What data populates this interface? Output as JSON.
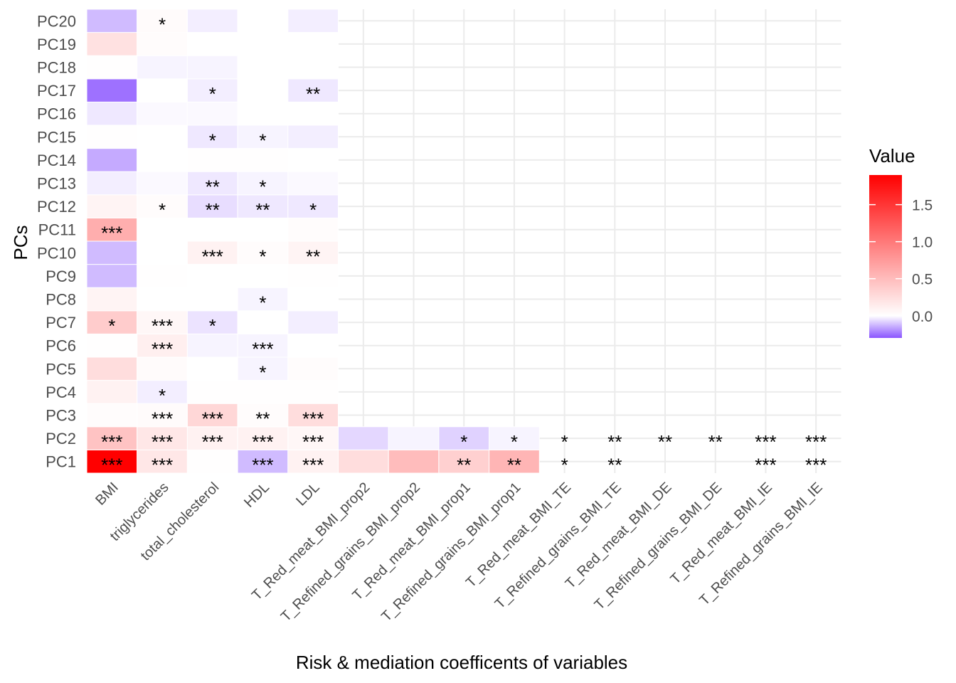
{
  "chart_data": {
    "type": "heatmap",
    "xlabel": "Risk & mediation coefficents of variables",
    "ylabel": "PCs",
    "x_categories": [
      "BMI",
      "triglycerides",
      "total_cholesterol",
      "HDL",
      "LDL",
      "T_Red_meat_BMI_prop2",
      "T_Refined_grains_BMI_prop2",
      "T_Red_meat_BMI_prop1",
      "T_Refined_grains_BMI_prop1",
      "T_Red_meat_BMI_TE",
      "T_Refined_grains_BMI_TE",
      "T_Red_meat_BMI_DE",
      "T_Refined_grains_BMI_DE",
      "T_Red_meat_BMI_IE",
      "T_Refined_grains_BMI_IE"
    ],
    "y_categories": [
      "PC1",
      "PC2",
      "PC3",
      "PC4",
      "PC5",
      "PC6",
      "PC7",
      "PC8",
      "PC9",
      "PC10",
      "PC11",
      "PC12",
      "PC13",
      "PC14",
      "PC15",
      "PC16",
      "PC17",
      "PC18",
      "PC19",
      "PC20"
    ],
    "value_range": [
      -0.3,
      1.9
    ],
    "legend": {
      "title": "Value",
      "position": "right",
      "ticks": [
        0.0,
        0.5,
        1.0,
        1.5
      ],
      "tick_labels": [
        "0.0",
        "0.5",
        "1.0",
        "1.5"
      ],
      "colors": {
        "low": "#8a55ff",
        "mid": "#ffffff",
        "high": "#ff0000"
      }
    },
    "grid": true,
    "cells": [
      {
        "x": "BMI",
        "y": "PC1",
        "value": 1.9,
        "sig": "***"
      },
      {
        "x": "BMI",
        "y": "PC2",
        "value": 0.45,
        "sig": "***"
      },
      {
        "x": "BMI",
        "y": "PC3",
        "value": 0.02,
        "sig": ""
      },
      {
        "x": "BMI",
        "y": "PC4",
        "value": 0.1,
        "sig": ""
      },
      {
        "x": "BMI",
        "y": "PC5",
        "value": 0.25,
        "sig": ""
      },
      {
        "x": "BMI",
        "y": "PC6",
        "value": 0.01,
        "sig": ""
      },
      {
        "x": "BMI",
        "y": "PC7",
        "value": 0.38,
        "sig": "*"
      },
      {
        "x": "BMI",
        "y": "PC8",
        "value": 0.08,
        "sig": ""
      },
      {
        "x": "BMI",
        "y": "PC9",
        "value": -0.12,
        "sig": ""
      },
      {
        "x": "BMI",
        "y": "PC10",
        "value": -0.12,
        "sig": ""
      },
      {
        "x": "BMI",
        "y": "PC11",
        "value": 0.6,
        "sig": "***"
      },
      {
        "x": "BMI",
        "y": "PC12",
        "value": 0.08,
        "sig": ""
      },
      {
        "x": "BMI",
        "y": "PC13",
        "value": -0.03,
        "sig": ""
      },
      {
        "x": "BMI",
        "y": "PC14",
        "value": -0.15,
        "sig": ""
      },
      {
        "x": "BMI",
        "y": "PC15",
        "value": 0.01,
        "sig": ""
      },
      {
        "x": "BMI",
        "y": "PC16",
        "value": -0.04,
        "sig": ""
      },
      {
        "x": "BMI",
        "y": "PC17",
        "value": -0.25,
        "sig": ""
      },
      {
        "x": "BMI",
        "y": "PC18",
        "value": 0.01,
        "sig": ""
      },
      {
        "x": "BMI",
        "y": "PC19",
        "value": 0.22,
        "sig": ""
      },
      {
        "x": "BMI",
        "y": "PC20",
        "value": -0.12,
        "sig": ""
      },
      {
        "x": "triglycerides",
        "y": "PC1",
        "value": 0.18,
        "sig": "***"
      },
      {
        "x": "triglycerides",
        "y": "PC2",
        "value": 0.18,
        "sig": "***"
      },
      {
        "x": "triglycerides",
        "y": "PC3",
        "value": 0.03,
        "sig": "***"
      },
      {
        "x": "triglycerides",
        "y": "PC4",
        "value": -0.03,
        "sig": "*"
      },
      {
        "x": "triglycerides",
        "y": "PC5",
        "value": 0.03,
        "sig": ""
      },
      {
        "x": "triglycerides",
        "y": "PC6",
        "value": 0.12,
        "sig": "***"
      },
      {
        "x": "triglycerides",
        "y": "PC7",
        "value": 0.06,
        "sig": "***"
      },
      {
        "x": "triglycerides",
        "y": "PC8",
        "value": 0.0,
        "sig": ""
      },
      {
        "x": "triglycerides",
        "y": "PC9",
        "value": 0.01,
        "sig": ""
      },
      {
        "x": "triglycerides",
        "y": "PC10",
        "value": 0.0,
        "sig": ""
      },
      {
        "x": "triglycerides",
        "y": "PC11",
        "value": 0.0,
        "sig": ""
      },
      {
        "x": "triglycerides",
        "y": "PC12",
        "value": 0.02,
        "sig": "*"
      },
      {
        "x": "triglycerides",
        "y": "PC13",
        "value": -0.01,
        "sig": ""
      },
      {
        "x": "triglycerides",
        "y": "PC14",
        "value": 0.0,
        "sig": ""
      },
      {
        "x": "triglycerides",
        "y": "PC15",
        "value": 0.0,
        "sig": ""
      },
      {
        "x": "triglycerides",
        "y": "PC16",
        "value": -0.01,
        "sig": ""
      },
      {
        "x": "triglycerides",
        "y": "PC17",
        "value": 0.0,
        "sig": ""
      },
      {
        "x": "triglycerides",
        "y": "PC18",
        "value": -0.02,
        "sig": ""
      },
      {
        "x": "triglycerides",
        "y": "PC19",
        "value": 0.02,
        "sig": ""
      },
      {
        "x": "triglycerides",
        "y": "PC20",
        "value": 0.03,
        "sig": "*"
      },
      {
        "x": "total_cholesterol",
        "y": "PC1",
        "value": 0.01,
        "sig": ""
      },
      {
        "x": "total_cholesterol",
        "y": "PC2",
        "value": 0.1,
        "sig": "***"
      },
      {
        "x": "total_cholesterol",
        "y": "PC3",
        "value": 0.3,
        "sig": "***"
      },
      {
        "x": "total_cholesterol",
        "y": "PC4",
        "value": 0.01,
        "sig": ""
      },
      {
        "x": "total_cholesterol",
        "y": "PC5",
        "value": 0.0,
        "sig": ""
      },
      {
        "x": "total_cholesterol",
        "y": "PC6",
        "value": -0.02,
        "sig": ""
      },
      {
        "x": "total_cholesterol",
        "y": "PC7",
        "value": -0.05,
        "sig": "*"
      },
      {
        "x": "total_cholesterol",
        "y": "PC8",
        "value": 0.0,
        "sig": ""
      },
      {
        "x": "total_cholesterol",
        "y": "PC9",
        "value": 0.0,
        "sig": ""
      },
      {
        "x": "total_cholesterol",
        "y": "PC10",
        "value": 0.1,
        "sig": "***"
      },
      {
        "x": "total_cholesterol",
        "y": "PC11",
        "value": 0.0,
        "sig": ""
      },
      {
        "x": "total_cholesterol",
        "y": "PC12",
        "value": -0.06,
        "sig": "**"
      },
      {
        "x": "total_cholesterol",
        "y": "PC13",
        "value": -0.04,
        "sig": "**"
      },
      {
        "x": "total_cholesterol",
        "y": "PC14",
        "value": 0.01,
        "sig": ""
      },
      {
        "x": "total_cholesterol",
        "y": "PC15",
        "value": -0.04,
        "sig": "*"
      },
      {
        "x": "total_cholesterol",
        "y": "PC16",
        "value": -0.01,
        "sig": ""
      },
      {
        "x": "total_cholesterol",
        "y": "PC17",
        "value": -0.03,
        "sig": "*"
      },
      {
        "x": "total_cholesterol",
        "y": "PC18",
        "value": -0.02,
        "sig": ""
      },
      {
        "x": "total_cholesterol",
        "y": "PC19",
        "value": 0.0,
        "sig": ""
      },
      {
        "x": "total_cholesterol",
        "y": "PC20",
        "value": -0.03,
        "sig": ""
      },
      {
        "x": "HDL",
        "y": "PC1",
        "value": -0.12,
        "sig": "***"
      },
      {
        "x": "HDL",
        "y": "PC2",
        "value": 0.1,
        "sig": "***"
      },
      {
        "x": "HDL",
        "y": "PC3",
        "value": 0.02,
        "sig": "**"
      },
      {
        "x": "HDL",
        "y": "PC4",
        "value": 0.01,
        "sig": ""
      },
      {
        "x": "HDL",
        "y": "PC5",
        "value": -0.02,
        "sig": "*"
      },
      {
        "x": "HDL",
        "y": "PC6",
        "value": -0.02,
        "sig": "***"
      },
      {
        "x": "HDL",
        "y": "PC7",
        "value": 0.0,
        "sig": ""
      },
      {
        "x": "HDL",
        "y": "PC8",
        "value": -0.02,
        "sig": "*"
      },
      {
        "x": "HDL",
        "y": "PC9",
        "value": 0.0,
        "sig": ""
      },
      {
        "x": "HDL",
        "y": "PC10",
        "value": 0.02,
        "sig": "*"
      },
      {
        "x": "HDL",
        "y": "PC11",
        "value": 0.0,
        "sig": ""
      },
      {
        "x": "HDL",
        "y": "PC12",
        "value": -0.04,
        "sig": "**"
      },
      {
        "x": "HDL",
        "y": "PC13",
        "value": -0.02,
        "sig": "*"
      },
      {
        "x": "HDL",
        "y": "PC14",
        "value": 0.01,
        "sig": ""
      },
      {
        "x": "HDL",
        "y": "PC15",
        "value": -0.02,
        "sig": "*"
      },
      {
        "x": "HDL",
        "y": "PC16",
        "value": 0.0,
        "sig": ""
      },
      {
        "x": "HDL",
        "y": "PC17",
        "value": 0.0,
        "sig": ""
      },
      {
        "x": "HDL",
        "y": "PC18",
        "value": 0.0,
        "sig": ""
      },
      {
        "x": "HDL",
        "y": "PC19",
        "value": 0.0,
        "sig": ""
      },
      {
        "x": "HDL",
        "y": "PC20",
        "value": 0.0,
        "sig": ""
      },
      {
        "x": "LDL",
        "y": "PC1",
        "value": 0.1,
        "sig": "***"
      },
      {
        "x": "LDL",
        "y": "PC2",
        "value": 0.06,
        "sig": "***"
      },
      {
        "x": "LDL",
        "y": "PC3",
        "value": 0.25,
        "sig": "***"
      },
      {
        "x": "LDL",
        "y": "PC4",
        "value": 0.01,
        "sig": ""
      },
      {
        "x": "LDL",
        "y": "PC5",
        "value": 0.02,
        "sig": ""
      },
      {
        "x": "LDL",
        "y": "PC6",
        "value": 0.0,
        "sig": ""
      },
      {
        "x": "LDL",
        "y": "PC7",
        "value": -0.03,
        "sig": ""
      },
      {
        "x": "LDL",
        "y": "PC8",
        "value": 0.0,
        "sig": ""
      },
      {
        "x": "LDL",
        "y": "PC9",
        "value": 0.01,
        "sig": ""
      },
      {
        "x": "LDL",
        "y": "PC10",
        "value": 0.08,
        "sig": "**"
      },
      {
        "x": "LDL",
        "y": "PC11",
        "value": 0.02,
        "sig": ""
      },
      {
        "x": "LDL",
        "y": "PC12",
        "value": -0.04,
        "sig": "*"
      },
      {
        "x": "LDL",
        "y": "PC13",
        "value": -0.01,
        "sig": ""
      },
      {
        "x": "LDL",
        "y": "PC14",
        "value": 0.0,
        "sig": ""
      },
      {
        "x": "LDL",
        "y": "PC15",
        "value": -0.03,
        "sig": ""
      },
      {
        "x": "LDL",
        "y": "PC16",
        "value": 0.0,
        "sig": ""
      },
      {
        "x": "LDL",
        "y": "PC17",
        "value": -0.04,
        "sig": "**"
      },
      {
        "x": "LDL",
        "y": "PC18",
        "value": 0.0,
        "sig": ""
      },
      {
        "x": "LDL",
        "y": "PC19",
        "value": 0.0,
        "sig": ""
      },
      {
        "x": "LDL",
        "y": "PC20",
        "value": -0.03,
        "sig": ""
      },
      {
        "x": "T_Red_meat_BMI_prop2",
        "y": "PC1",
        "value": 0.25,
        "sig": ""
      },
      {
        "x": "T_Red_meat_BMI_prop2",
        "y": "PC2",
        "value": -0.07,
        "sig": ""
      },
      {
        "x": "T_Refined_grains_BMI_prop2",
        "y": "PC1",
        "value": 0.5,
        "sig": ""
      },
      {
        "x": "T_Refined_grains_BMI_prop2",
        "y": "PC2",
        "value": -0.02,
        "sig": ""
      },
      {
        "x": "T_Red_meat_BMI_prop1",
        "y": "PC1",
        "value": 0.35,
        "sig": "**"
      },
      {
        "x": "T_Red_meat_BMI_prop1",
        "y": "PC2",
        "value": -0.08,
        "sig": "*"
      },
      {
        "x": "T_Refined_grains_BMI_prop1",
        "y": "PC1",
        "value": 0.55,
        "sig": "**"
      },
      {
        "x": "T_Refined_grains_BMI_prop1",
        "y": "PC2",
        "value": -0.02,
        "sig": "*"
      },
      {
        "x": "T_Red_meat_BMI_TE",
        "y": "PC1",
        "value": 0.0,
        "sig": "*"
      },
      {
        "x": "T_Red_meat_BMI_TE",
        "y": "PC2",
        "value": 0.0,
        "sig": "*"
      },
      {
        "x": "T_Refined_grains_BMI_TE",
        "y": "PC1",
        "value": 0.0,
        "sig": "**"
      },
      {
        "x": "T_Refined_grains_BMI_TE",
        "y": "PC2",
        "value": 0.0,
        "sig": "**"
      },
      {
        "x": "T_Red_meat_BMI_DE",
        "y": "PC1",
        "value": 0.0,
        "sig": ""
      },
      {
        "x": "T_Red_meat_BMI_DE",
        "y": "PC2",
        "value": 0.0,
        "sig": "**"
      },
      {
        "x": "T_Refined_grains_BMI_DE",
        "y": "PC1",
        "value": 0.0,
        "sig": ""
      },
      {
        "x": "T_Refined_grains_BMI_DE",
        "y": "PC2",
        "value": 0.0,
        "sig": "**"
      },
      {
        "x": "T_Red_meat_BMI_IE",
        "y": "PC1",
        "value": 0.0,
        "sig": "***"
      },
      {
        "x": "T_Red_meat_BMI_IE",
        "y": "PC2",
        "value": 0.0,
        "sig": "***"
      },
      {
        "x": "T_Refined_grains_BMI_IE",
        "y": "PC1",
        "value": 0.0,
        "sig": "***"
      },
      {
        "x": "T_Refined_grains_BMI_IE",
        "y": "PC2",
        "value": 0.0,
        "sig": "***"
      }
    ]
  }
}
